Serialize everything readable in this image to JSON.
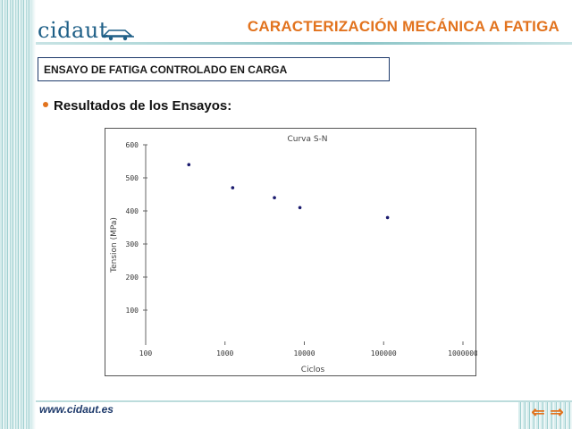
{
  "header": {
    "logo_text": "cidaut",
    "title": "CARACTERIZACIÓN MECÁNICA A FATIGA"
  },
  "subtitle": "ENSAYO DE FATIGA CONTROLADO EN CARGA",
  "section_heading": "Resultados de los Ensayos:",
  "footer": {
    "url": "www.cidaut.es",
    "prev_icon": "arrow-left-icon",
    "next_icon": "arrow-right-icon"
  },
  "colors": {
    "accent": "#e2731e",
    "brand": "#1e5f87",
    "points": "#1a1a6e"
  },
  "chart_data": {
    "type": "scatter",
    "title": "Curva S-N",
    "xlabel": "Ciclos",
    "ylabel": "Tension (MPa)",
    "xscale": "log",
    "xlim": [
      100,
      1000000
    ],
    "ylim": [
      0,
      600
    ],
    "xticks": [
      "100",
      "1000",
      "10000",
      "100000",
      "1000000"
    ],
    "yticks": [
      "100",
      "200",
      "300",
      "400",
      "500",
      "600"
    ],
    "grid": false,
    "points": [
      {
        "x": 350,
        "y": 540
      },
      {
        "x": 1250,
        "y": 470
      },
      {
        "x": 4200,
        "y": 440
      },
      {
        "x": 8800,
        "y": 410
      },
      {
        "x": 112000,
        "y": 380
      }
    ]
  }
}
